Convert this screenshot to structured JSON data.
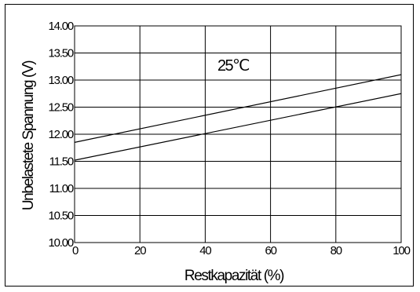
{
  "chart_data": {
    "type": "line",
    "title": "",
    "xlabel": "Restkapazität (%)",
    "ylabel": "Unbelastete Spannung (V)",
    "annotation": "25℃",
    "xlim": [
      0,
      100
    ],
    "ylim": [
      10.0,
      14.0
    ],
    "x_ticks": [
      "0",
      "20",
      "40",
      "60",
      "80",
      "100"
    ],
    "y_ticks": [
      "10.00",
      "10.50",
      "11.00",
      "11.50",
      "12.00",
      "12.50",
      "13.00",
      "13.50",
      "14.00"
    ],
    "grid": true,
    "series": [
      {
        "x": [
          0,
          100
        ],
        "values": [
          11.85,
          13.1
        ]
      },
      {
        "x": [
          0,
          100
        ],
        "values": [
          11.52,
          12.75
        ]
      }
    ],
    "line_color": "#000000"
  }
}
